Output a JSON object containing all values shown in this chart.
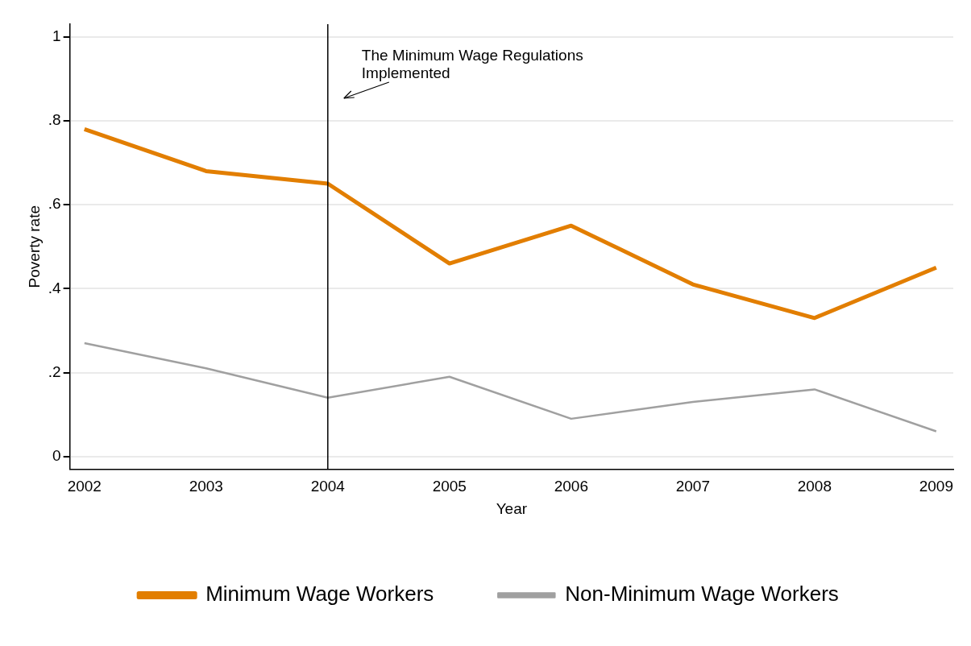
{
  "chart_data": {
    "type": "line",
    "xlabel": "Year",
    "ylabel": "Poverty rate",
    "x": [
      2002,
      2003,
      2004,
      2005,
      2006,
      2007,
      2008,
      2009
    ],
    "series": [
      {
        "name": "Minimum Wage Workers",
        "color": "#e27e00",
        "values": [
          0.78,
          0.68,
          0.65,
          0.46,
          0.55,
          0.41,
          0.33,
          0.45
        ]
      },
      {
        "name": "Non-Minimum Wage Workers",
        "color": "#a0a0a0",
        "values": [
          0.27,
          0.21,
          0.14,
          0.19,
          0.09,
          0.13,
          0.16,
          0.06
        ]
      }
    ],
    "xlim": [
      2001.88,
      2009.14
    ],
    "xticks": [
      2002,
      2003,
      2004,
      2005,
      2006,
      2007,
      2008,
      2009
    ],
    "ylim": [
      -0.03,
      1.03
    ],
    "yticks": [
      0,
      {
        "value": 0.2,
        "label": ".2"
      },
      {
        "value": 0.4,
        "label": ".4"
      },
      {
        "value": 0.6,
        "label": ".6"
      },
      {
        "value": 0.8,
        "label": ".8"
      },
      1
    ],
    "ref_lines": [
      {
        "axis": "x",
        "value": 2004,
        "color": "#000000"
      }
    ],
    "annotations": [
      "The Minimum Wage Regulations Implemented"
    ],
    "grid": "y",
    "legend": "bottom",
    "marker": "none",
    "line_style": "solid"
  }
}
